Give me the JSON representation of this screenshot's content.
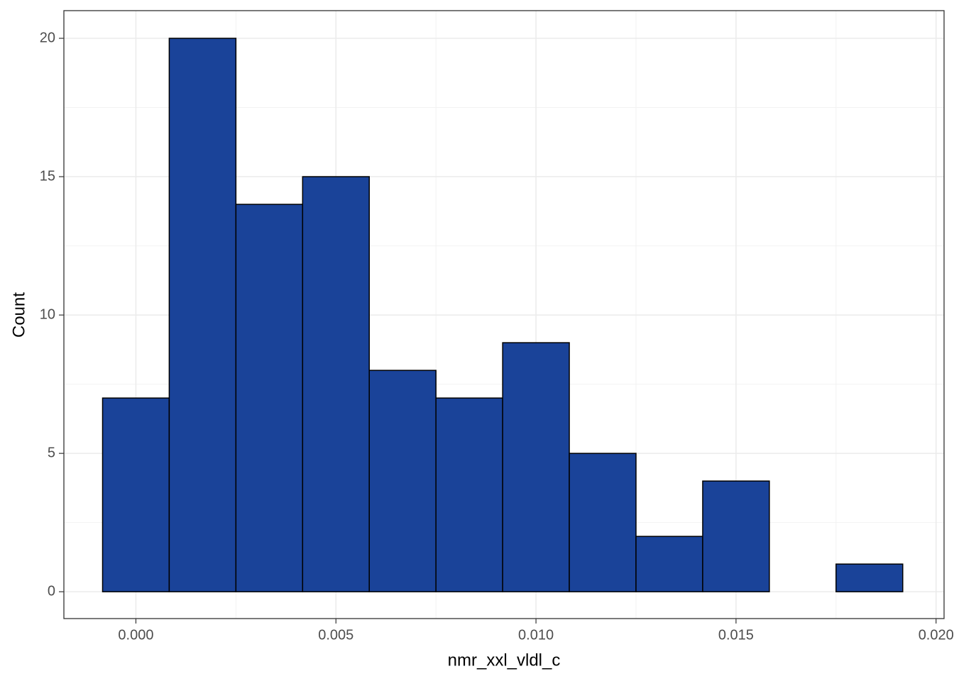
{
  "chart_data": {
    "type": "histogram",
    "x_label": "nmr_xxl_vldl_c",
    "y_label": "Count",
    "bins": [
      -0.000833,
      0.000833,
      0.0025,
      0.004167,
      0.005833,
      0.0075,
      0.009167,
      0.010833,
      0.0125,
      0.014167,
      0.015833,
      0.0175,
      0.019167
    ],
    "values": [
      7,
      20,
      14,
      15,
      8,
      7,
      9,
      5,
      2,
      4,
      0,
      1
    ],
    "color": "#1a4399",
    "edge_color": "#000000",
    "xlim": [
      -0.0018,
      0.0202
    ],
    "ylim": [
      -0.97,
      21
    ],
    "xticks": [
      {
        "value": 0,
        "label": "0.000"
      },
      0.005,
      {
        "value": 0.01,
        "label": "0.010"
      },
      0.015,
      {
        "value": 0.02,
        "label": "0.020"
      }
    ],
    "yticks": [
      0,
      5,
      10,
      15,
      20
    ],
    "xminor": [
      0.0025,
      0.0075,
      0.0125,
      0.0175
    ],
    "yminor": [
      2.5,
      7.5,
      12.5,
      17.5
    ],
    "grid": true
  }
}
